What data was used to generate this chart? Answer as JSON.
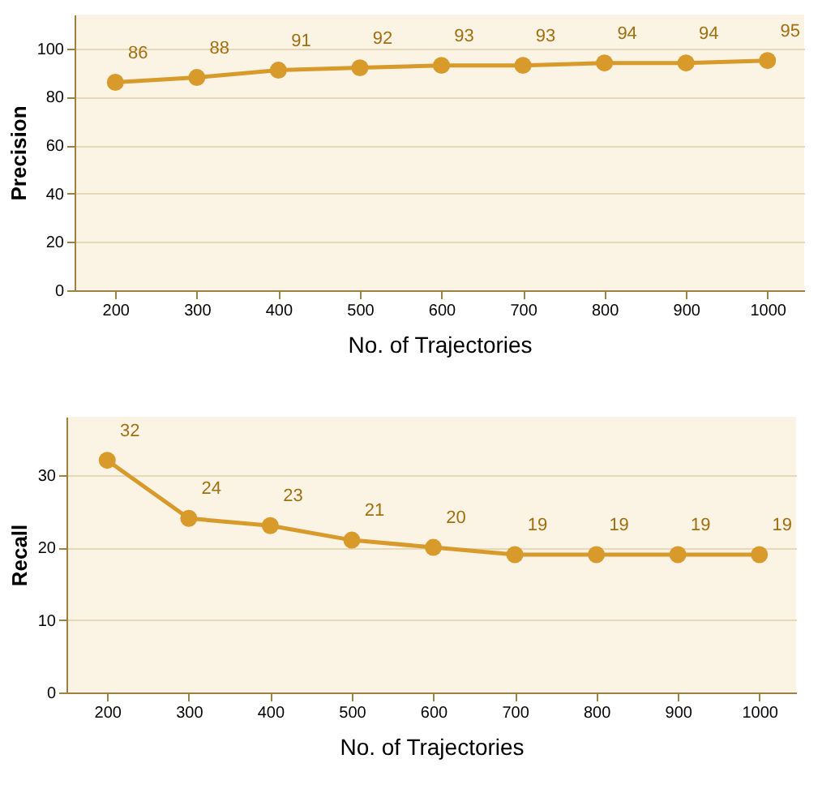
{
  "chart_data": [
    {
      "type": "line",
      "xlabel": "No. of Trajectories",
      "ylabel": "Precision",
      "x": [
        200,
        300,
        400,
        500,
        600,
        700,
        800,
        900,
        1000
      ],
      "series": [
        {
          "color": "#d89a2a",
          "values": [
            86,
            88,
            91,
            92,
            93,
            93,
            94,
            94,
            95
          ]
        }
      ],
      "xlim": [
        150,
        1045
      ],
      "xticks": [
        200,
        300,
        400,
        500,
        600,
        700,
        800,
        900,
        1000
      ],
      "ylim": [
        0,
        114
      ],
      "yticks": [
        0,
        20,
        40,
        60,
        80,
        100
      ],
      "grid": "y",
      "marker": "circle",
      "line_style": "solid",
      "data_labels": true
    },
    {
      "type": "line",
      "xlabel": "No. of Trajectories",
      "ylabel": "Recall",
      "x": [
        200,
        300,
        400,
        500,
        600,
        700,
        800,
        900,
        1000
      ],
      "series": [
        {
          "color": "#d89a2a",
          "values": [
            32,
            24,
            23,
            21,
            20,
            19,
            19,
            19,
            19
          ]
        }
      ],
      "xlim": [
        150,
        1045
      ],
      "xticks": [
        200,
        300,
        400,
        500,
        600,
        700,
        800,
        900,
        1000
      ],
      "ylim": [
        0,
        38
      ],
      "yticks": [
        0,
        10,
        20,
        30
      ],
      "grid": "y",
      "marker": "circle",
      "line_style": "solid",
      "data_labels": true
    }
  ]
}
